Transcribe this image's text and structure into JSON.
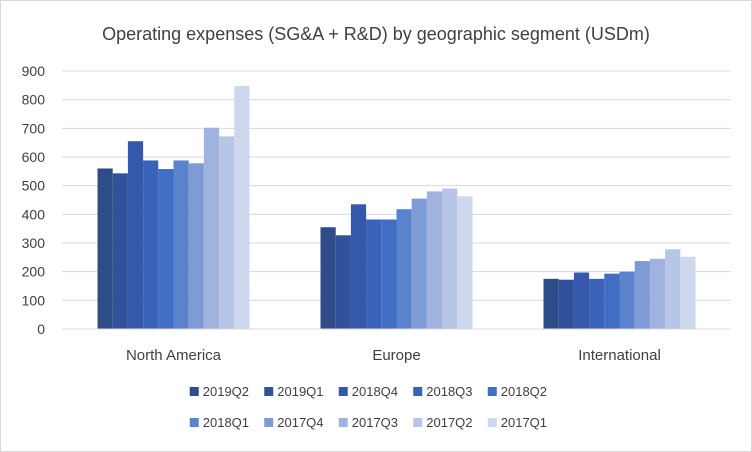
{
  "chart_data": {
    "type": "bar",
    "title": "Operating expenses (SG&A + R&D) by geographic segment (USDm)",
    "xlabel": "",
    "ylabel": "",
    "ylim": [
      0,
      900
    ],
    "yticks": [
      0,
      100,
      200,
      300,
      400,
      500,
      600,
      700,
      800,
      900
    ],
    "grid": true,
    "legend_position": "bottom",
    "categories": [
      "North America",
      "Europe",
      "International"
    ],
    "series": [
      {
        "name": "2019Q2",
        "color": "#2e4c87",
        "values": [
          560,
          355,
          175
        ]
      },
      {
        "name": "2019Q1",
        "color": "#31529a",
        "values": [
          543,
          327,
          172
        ]
      },
      {
        "name": "2018Q4",
        "color": "#3558ab",
        "values": [
          655,
          435,
          197
        ]
      },
      {
        "name": "2018Q3",
        "color": "#3a62b9",
        "values": [
          588,
          382,
          175
        ]
      },
      {
        "name": "2018Q2",
        "color": "#416dc4",
        "values": [
          558,
          382,
          193
        ]
      },
      {
        "name": "2018Q1",
        "color": "#5b82cc",
        "values": [
          588,
          418,
          200
        ]
      },
      {
        "name": "2017Q4",
        "color": "#7e9bd5",
        "values": [
          578,
          455,
          237
        ]
      },
      {
        "name": "2017Q3",
        "color": "#9fb3de",
        "values": [
          702,
          480,
          245
        ]
      },
      {
        "name": "2017Q2",
        "color": "#b7c6e6",
        "values": [
          672,
          490,
          278
        ]
      },
      {
        "name": "2017Q1",
        "color": "#cdd8ee",
        "values": [
          848,
          463,
          252
        ]
      }
    ]
  }
}
